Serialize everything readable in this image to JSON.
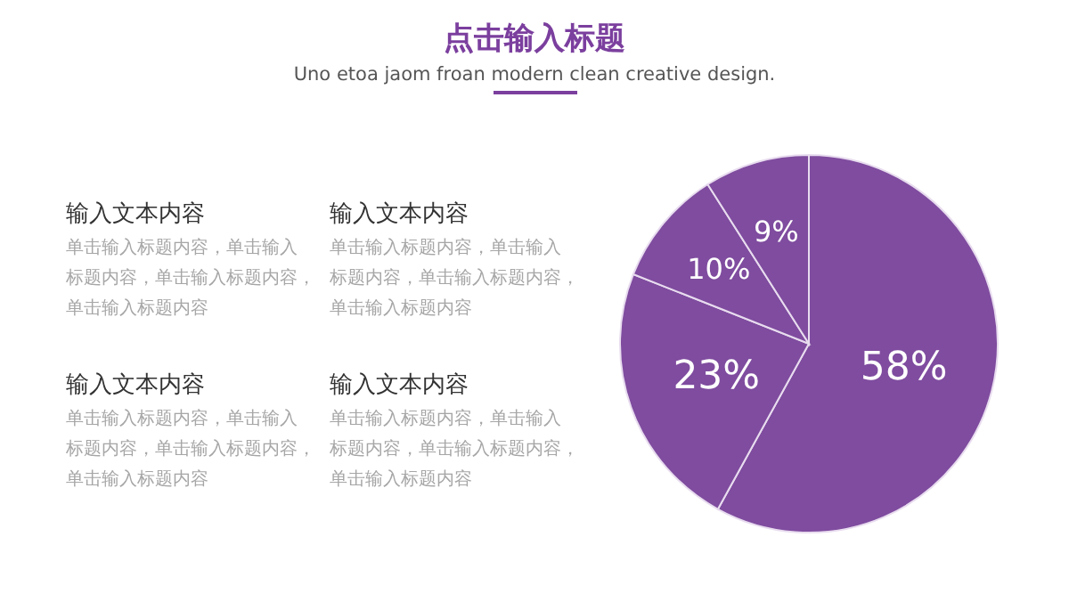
{
  "chart_data": {
    "type": "pie",
    "title": "点击输入标题",
    "subtitle": "Uno etoa jaom froan modern clean creative design.",
    "categories": [
      null,
      null,
      null,
      null
    ],
    "values": [
      58,
      23,
      10,
      9
    ],
    "colors": [
      "#7f4c9f",
      "#7f4c9f",
      "#7f4c9f",
      "#7f4c9f"
    ],
    "value_labels": [
      "58%",
      "23%",
      "10%",
      "9%"
    ],
    "annotations": [
      "输入文本内容",
      "单击输入标题内容，单击输入标题内容，单击输入标题内容，单击输入标题内容",
      "输入文本内容",
      "单击输入标题内容，单击输入标题内容，单击输入标题内容，单击输入标题内容",
      "输入文本内容",
      "单击输入标题内容，单击输入标题内容，单击输入标题内容，单击输入标题内容",
      "输入文本内容",
      "单击输入标题内容，单击输入标题内容，单击输入标题内容，单击输入标题内容"
    ]
  }
}
